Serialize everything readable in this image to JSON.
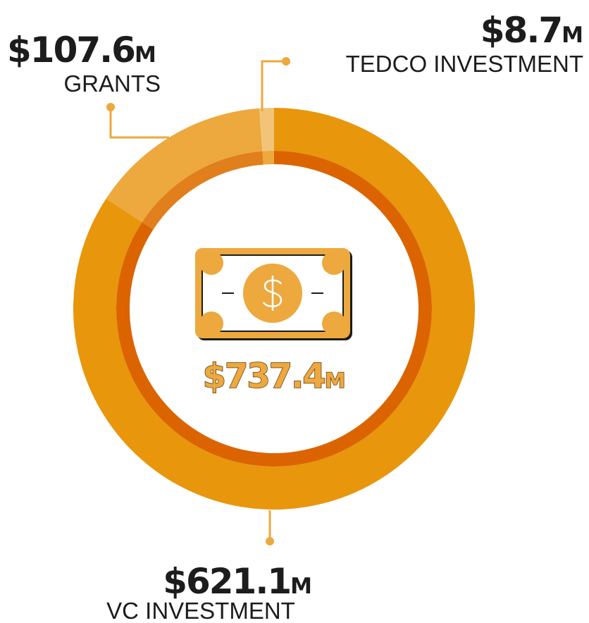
{
  "chart_data": {
    "type": "donut",
    "series": [
      {
        "name": "VC INVESTMENT",
        "value": 621.1,
        "value_label": "$621.1M",
        "color": "#e8960c",
        "inner_color": "#db6400"
      },
      {
        "name": "GRANTS",
        "value": 107.6,
        "value_label": "$107.6M",
        "color": "#eda83e",
        "inner_color": "#e07f1c"
      },
      {
        "name": "TEDCO INVESTMENT",
        "value": 8.7,
        "value_label": "$8.7M",
        "color": "#f2c47a",
        "inner_color": "#eda83e"
      }
    ],
    "total": 737.4,
    "total_label": "$737.4M"
  }
}
